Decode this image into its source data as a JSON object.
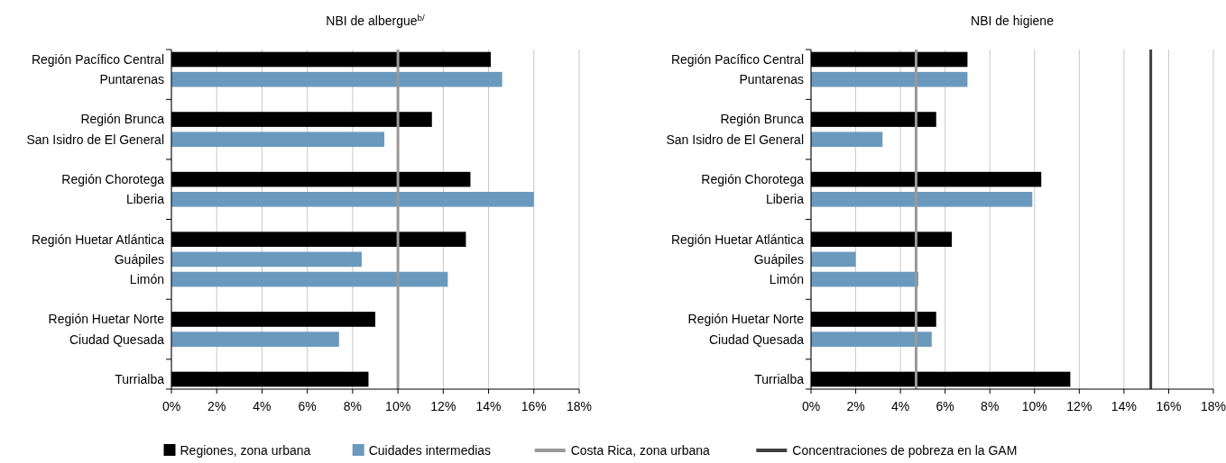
{
  "chart_data": [
    {
      "type": "bar",
      "orientation": "horizontal",
      "title": "NBI de albergue$^{b/}$",
      "categories": [
        "Región Pacífico Central",
        "Puntarenas",
        null,
        "Región Brunca",
        "San Isidro de El General",
        null,
        "Región Chorotega",
        "Liberia",
        null,
        "Región Huetar Atlántica",
        "Guápiles",
        "Limón",
        null,
        "Región Huetar Norte",
        "Ciudad Quesada",
        null,
        "Turrialba"
      ],
      "series": [
        {
          "name": "Regiones, zona urbana",
          "color": "#000000",
          "values": [
            14.1,
            null,
            null,
            11.5,
            null,
            null,
            13.2,
            null,
            null,
            13.0,
            null,
            null,
            null,
            9.0,
            null,
            null,
            8.7
          ]
        },
        {
          "name": "Cuidades intermedias",
          "color": "#6a99bd",
          "values": [
            null,
            14.6,
            null,
            null,
            9.4,
            null,
            null,
            16.0,
            null,
            null,
            8.4,
            12.2,
            null,
            null,
            7.4,
            null,
            null
          ]
        }
      ],
      "xlim": [
        0,
        18
      ],
      "xticks": [
        {
          "value": 0,
          "label": "0%"
        },
        {
          "value": 2,
          "label": "2%"
        },
        {
          "value": 4,
          "label": "4%"
        },
        {
          "value": 6,
          "label": "6%"
        },
        {
          "value": 8,
          "label": "8%"
        },
        {
          "value": 10,
          "label": "10%"
        },
        {
          "value": 12,
          "label": "12%"
        },
        {
          "value": 14,
          "label": "14%"
        },
        {
          "value": 16,
          "label": "16%"
        },
        {
          "value": 18,
          "label": "18%"
        }
      ],
      "grid": "x",
      "legend": "bottom",
      "ref_lines": [
        {
          "axis": "x",
          "value": 10.0,
          "color": "#999999"
        }
      ]
    },
    {
      "type": "bar",
      "orientation": "horizontal",
      "title": "NBI de higiene",
      "categories": [
        "Región Pacífico Central",
        "Puntarenas",
        null,
        "Región Brunca",
        "San Isidro de El General",
        null,
        "Región Chorotega",
        "Liberia",
        null,
        "Región Huetar Atlántica",
        "Guápiles",
        "Limón",
        null,
        "Región Huetar Norte",
        "Ciudad Quesada",
        null,
        "Turrialba"
      ],
      "series": [
        {
          "color": "#6a99bd",
          "values": [
            null,
            7.0,
            null,
            null,
            3.2,
            null,
            null,
            9.9,
            null,
            null,
            2.0,
            4.8,
            null,
            null,
            5.4,
            null,
            null
          ]
        },
        {
          "color": "#000000",
          "values": [
            7.0,
            null,
            null,
            5.6,
            null,
            null,
            10.3,
            null,
            null,
            6.3,
            null,
            null,
            null,
            5.6,
            null,
            null,
            11.6
          ]
        }
      ],
      "xlim": [
        0,
        18
      ],
      "xticks": [
        {
          "value": 0,
          "label": "0%"
        },
        {
          "value": 2,
          "label": "2%"
        },
        {
          "value": 4,
          "label": "4%"
        },
        {
          "value": 6,
          "label": "6%"
        },
        {
          "value": 8,
          "label": "8%"
        },
        {
          "value": 10,
          "label": "10%"
        },
        {
          "value": 12,
          "label": "12%"
        },
        {
          "value": 14,
          "label": "14%"
        },
        {
          "value": 16,
          "label": "16%"
        },
        {
          "value": 18,
          "label": "18%"
        }
      ],
      "grid": "x",
      "legend": "bottom",
      "ref_lines": [
        {
          "axis": "x",
          "value": 4.7,
          "label": "Costa Rica, zona urbana",
          "color": "#999999"
        },
        {
          "axis": "x",
          "value": 15.2,
          "label": "Concentraciones de pobreza en la GAM",
          "color": "#404040"
        }
      ]
    }
  ]
}
